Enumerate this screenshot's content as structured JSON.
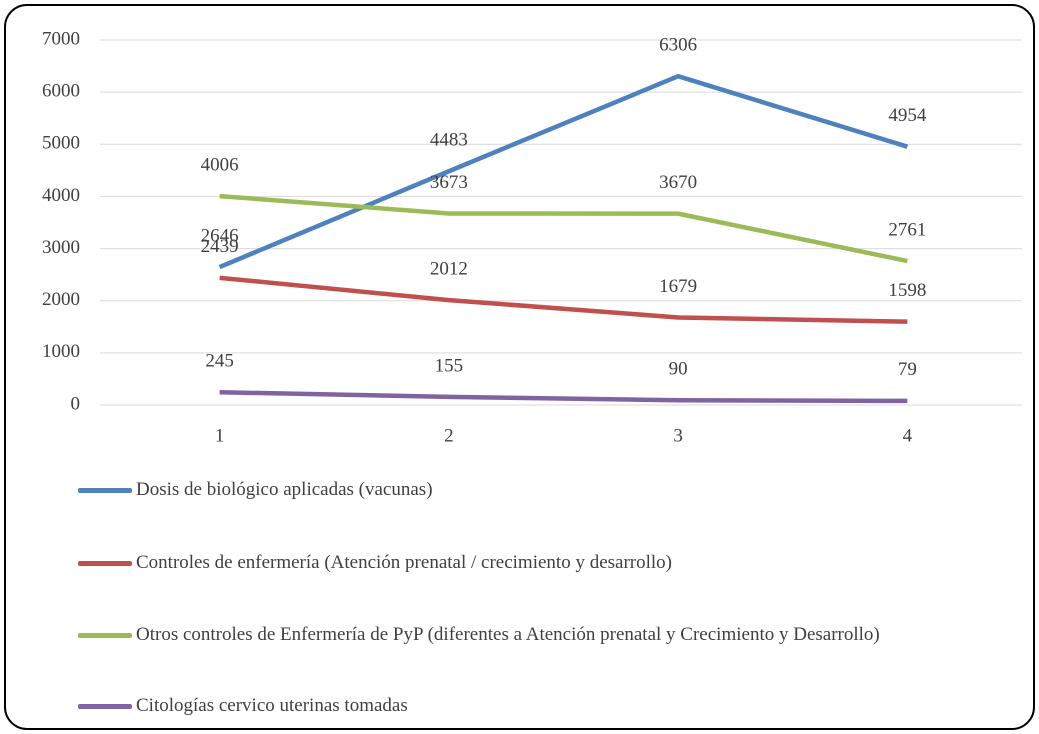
{
  "chart_data": {
    "type": "line",
    "categories": [
      "1",
      "2",
      "3",
      "4"
    ],
    "series": [
      {
        "name": "Dosis de biológico aplicadas (vacunas)",
        "color": "#4f81bd",
        "values": [
          2646,
          4483,
          6306,
          4954
        ]
      },
      {
        "name": "Controles de enfermería (Atención prenatal / crecimiento y desarrollo)",
        "color": "#c0504d",
        "values": [
          2439,
          2012,
          1679,
          1598
        ]
      },
      {
        "name": "Otros controles de Enfermería de PyP (diferentes a Atención prenatal y Crecimiento y Desarrollo)",
        "color": "#9bbb59",
        "values": [
          4006,
          3673,
          3670,
          2761
        ]
      },
      {
        "name": "Citologías cervico uterinas tomadas",
        "color": "#8064a2",
        "values": [
          245,
          155,
          90,
          79
        ]
      }
    ],
    "ylim": [
      0,
      7000
    ],
    "yticks": [
      0,
      1000,
      2000,
      3000,
      4000,
      5000,
      6000,
      7000
    ],
    "grid": true,
    "legend": "bottom"
  }
}
